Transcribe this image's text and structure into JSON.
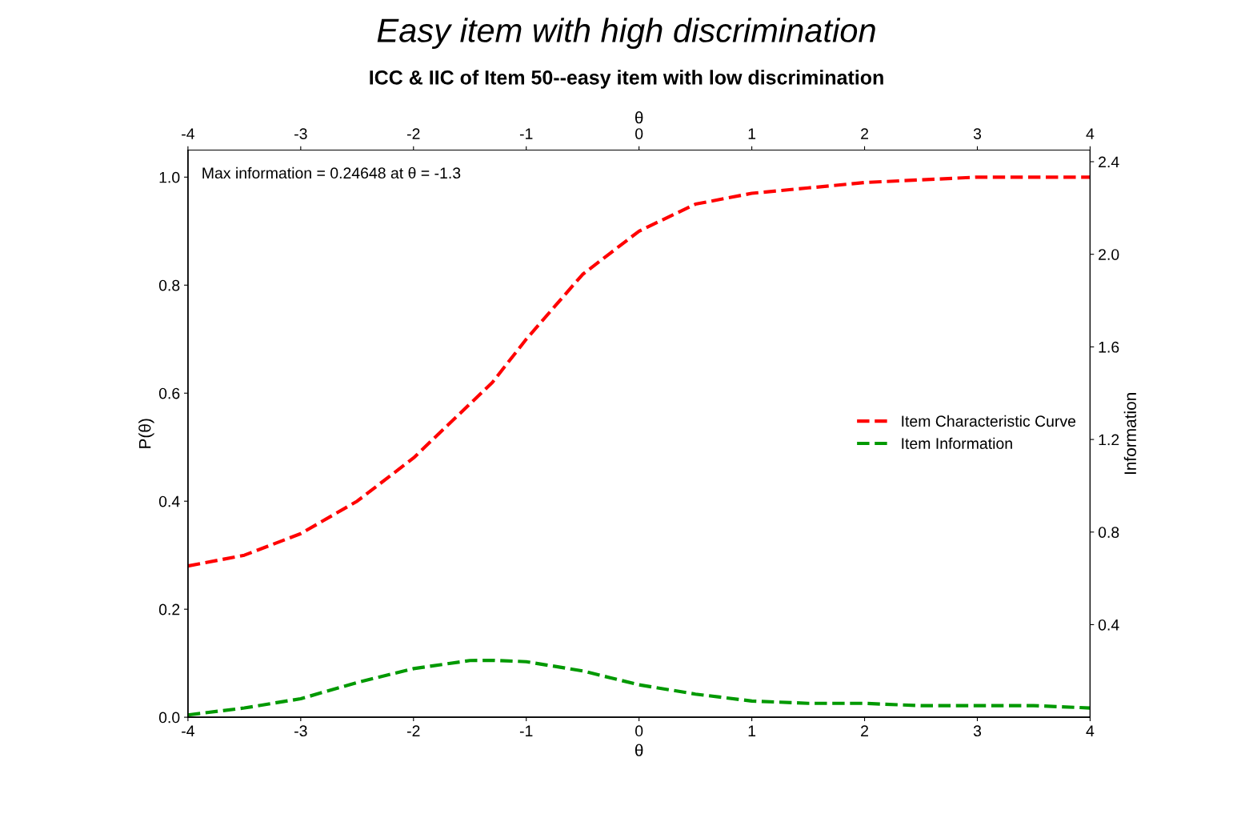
{
  "chart_data": {
    "type": "line",
    "title": "Easy item with high discrimination",
    "subtitle": "ICC & IIC of Item 50--easy item with low discrimination",
    "xlabel": "θ",
    "x2label": "θ",
    "ylabel": "P(θ)",
    "y2label": "Information",
    "annotations": [
      "Max information = 0.24648 at θ = -1.3"
    ],
    "x": [
      -4,
      -3.5,
      -3,
      -2.5,
      -2,
      -1.5,
      -1.3,
      -1,
      -0.5,
      0,
      0.5,
      1,
      1.5,
      2,
      2.5,
      3,
      3.5,
      4
    ],
    "series": [
      {
        "name": "Item Characteristic Curve",
        "color": "#ff0000",
        "values": [
          0.28,
          0.3,
          0.34,
          0.4,
          0.48,
          0.58,
          0.62,
          0.7,
          0.82,
          0.9,
          0.95,
          0.97,
          0.98,
          0.99,
          0.995,
          1.0,
          1.0,
          1.0
        ]
      },
      {
        "name": "Item Information",
        "color": "#009900",
        "axis": "y2",
        "values": [
          0.01,
          0.04,
          0.08,
          0.15,
          0.21,
          0.245,
          0.246,
          0.24,
          0.2,
          0.14,
          0.1,
          0.07,
          0.06,
          0.06,
          0.05,
          0.05,
          0.05,
          0.04
        ]
      }
    ],
    "xlim": [
      -4,
      4
    ],
    "xticks": [
      -4,
      -3,
      -2,
      -1,
      0,
      1,
      2,
      3,
      4
    ],
    "x2lim": [
      -4,
      4
    ],
    "x2ticks": [
      -4,
      -3,
      -2,
      -1,
      0,
      1,
      2,
      3,
      4
    ],
    "ylim": [
      0,
      1.05
    ],
    "yticks": [
      {
        "value": 0,
        "label": "0.0"
      },
      0.2,
      0.4,
      0.6,
      0.8,
      {
        "value": 1,
        "label": "1.0"
      }
    ],
    "y2lim": [
      0,
      2.45
    ],
    "y2ticks": [
      0.4,
      0.8,
      1.2,
      1.6,
      {
        "value": 2,
        "label": "2.0"
      },
      2.4
    ],
    "legend": "center right",
    "line_style": "dashed",
    "marker": "none",
    "grid": false
  }
}
